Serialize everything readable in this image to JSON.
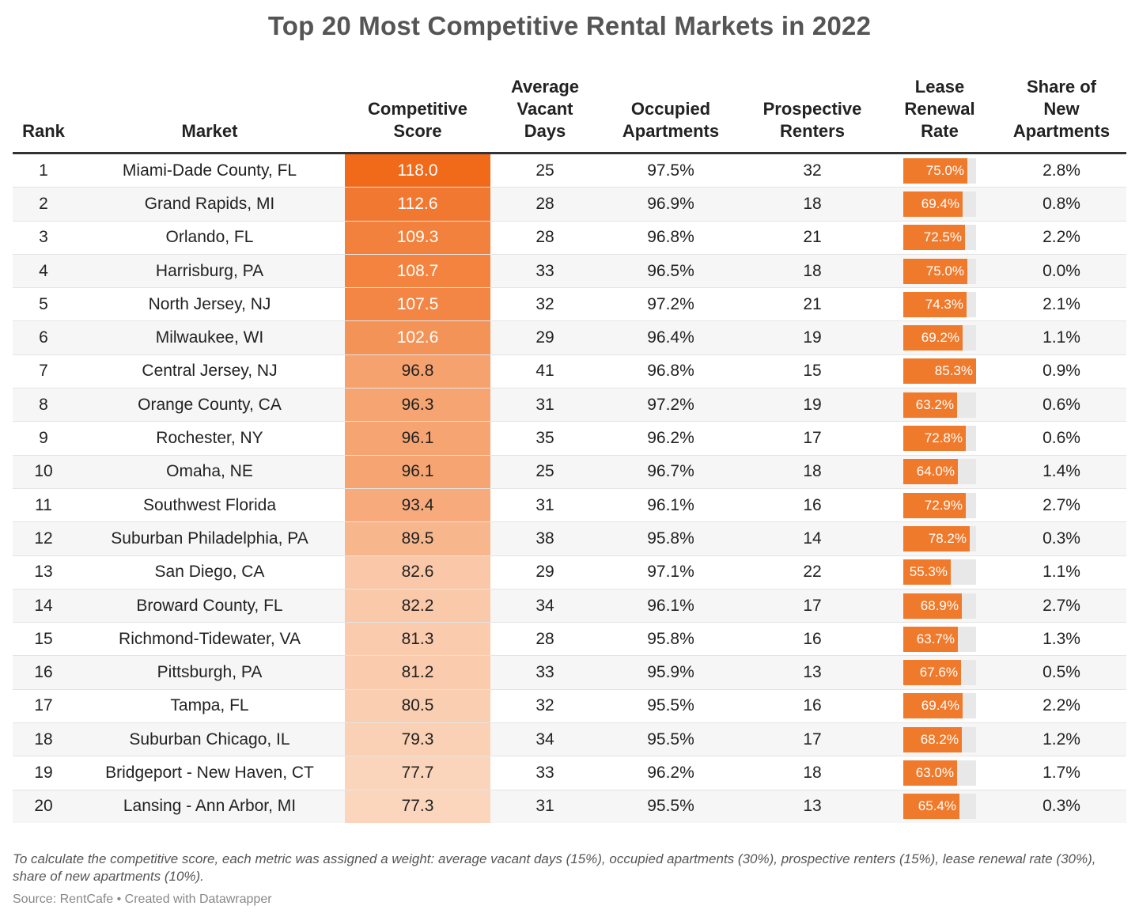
{
  "title": "Top 20 Most Competitive Rental Markets in 2022",
  "headers": {
    "rank": "Rank",
    "market": "Market",
    "score": [
      "Competitive",
      "Score"
    ],
    "vacant": [
      "Average",
      "Vacant",
      "Days"
    ],
    "occupied": [
      "Occupied",
      "Apartments"
    ],
    "renters": [
      "Prospective",
      "Renters"
    ],
    "renewal": [
      "Lease",
      "Renewal",
      "Rate"
    ],
    "new_share": [
      "Share of",
      "New",
      "Apartments"
    ]
  },
  "colors": {
    "accent": "#f07a2c",
    "score_high": "#f06a1a",
    "score_low": "#fbd6bd",
    "bar_track": "#e8e8e8"
  },
  "chart_data": {
    "type": "table",
    "title": "Top 20 Most Competitive Rental Markets in 2022",
    "columns": [
      "Rank",
      "Market",
      "Competitive Score",
      "Average Vacant Days",
      "Occupied Apartments",
      "Prospective Renters",
      "Lease Renewal Rate",
      "Share of New Apartments"
    ],
    "rows": [
      {
        "rank": "1",
        "market": "Miami-Dade County, FL",
        "score": "118.0",
        "vacant": "25",
        "occupied": "97.5%",
        "renters": "32",
        "renewal": "75.0%",
        "new_share": "2.8%"
      },
      {
        "rank": "2",
        "market": "Grand Rapids, MI",
        "score": "112.6",
        "vacant": "28",
        "occupied": "96.9%",
        "renters": "18",
        "renewal": "69.4%",
        "new_share": "0.8%"
      },
      {
        "rank": "3",
        "market": "Orlando, FL",
        "score": "109.3",
        "vacant": "28",
        "occupied": "96.8%",
        "renters": "21",
        "renewal": "72.5%",
        "new_share": "2.2%"
      },
      {
        "rank": "4",
        "market": "Harrisburg, PA",
        "score": "108.7",
        "vacant": "33",
        "occupied": "96.5%",
        "renters": "18",
        "renewal": "75.0%",
        "new_share": "0.0%"
      },
      {
        "rank": "5",
        "market": "North Jersey, NJ",
        "score": "107.5",
        "vacant": "32",
        "occupied": "97.2%",
        "renters": "21",
        "renewal": "74.3%",
        "new_share": "2.1%"
      },
      {
        "rank": "6",
        "market": "Milwaukee, WI",
        "score": "102.6",
        "vacant": "29",
        "occupied": "96.4%",
        "renters": "19",
        "renewal": "69.2%",
        "new_share": "1.1%"
      },
      {
        "rank": "7",
        "market": "Central Jersey, NJ",
        "score": "96.8",
        "vacant": "41",
        "occupied": "96.8%",
        "renters": "15",
        "renewal": "85.3%",
        "new_share": "0.9%"
      },
      {
        "rank": "8",
        "market": "Orange County, CA",
        "score": "96.3",
        "vacant": "31",
        "occupied": "97.2%",
        "renters": "19",
        "renewal": "63.2%",
        "new_share": "0.6%"
      },
      {
        "rank": "9",
        "market": "Rochester, NY",
        "score": "96.1",
        "vacant": "35",
        "occupied": "96.2%",
        "renters": "17",
        "renewal": "72.8%",
        "new_share": "0.6%"
      },
      {
        "rank": "10",
        "market": "Omaha, NE",
        "score": "96.1",
        "vacant": "25",
        "occupied": "96.7%",
        "renters": "18",
        "renewal": "64.0%",
        "new_share": "1.4%"
      },
      {
        "rank": "11",
        "market": "Southwest Florida",
        "score": "93.4",
        "vacant": "31",
        "occupied": "96.1%",
        "renters": "16",
        "renewal": "72.9%",
        "new_share": "2.7%"
      },
      {
        "rank": "12",
        "market": "Suburban Philadelphia, PA",
        "score": "89.5",
        "vacant": "38",
        "occupied": "95.8%",
        "renters": "14",
        "renewal": "78.2%",
        "new_share": "0.3%"
      },
      {
        "rank": "13",
        "market": "San Diego, CA",
        "score": "82.6",
        "vacant": "29",
        "occupied": "97.1%",
        "renters": "22",
        "renewal": "55.3%",
        "new_share": "1.1%"
      },
      {
        "rank": "14",
        "market": "Broward County, FL",
        "score": "82.2",
        "vacant": "34",
        "occupied": "96.1%",
        "renters": "17",
        "renewal": "68.9%",
        "new_share": "2.7%"
      },
      {
        "rank": "15",
        "market": "Richmond-Tidewater, VA",
        "score": "81.3",
        "vacant": "28",
        "occupied": "95.8%",
        "renters": "16",
        "renewal": "63.7%",
        "new_share": "1.3%"
      },
      {
        "rank": "16",
        "market": "Pittsburgh, PA",
        "score": "81.2",
        "vacant": "33",
        "occupied": "95.9%",
        "renters": "13",
        "renewal": "67.6%",
        "new_share": "0.5%"
      },
      {
        "rank": "17",
        "market": "Tampa, FL",
        "score": "80.5",
        "vacant": "32",
        "occupied": "95.5%",
        "renters": "16",
        "renewal": "69.4%",
        "new_share": "2.2%"
      },
      {
        "rank": "18",
        "market": "Suburban Chicago, IL",
        "score": "79.3",
        "vacant": "34",
        "occupied": "95.5%",
        "renters": "17",
        "renewal": "68.2%",
        "new_share": "1.2%"
      },
      {
        "rank": "19",
        "market": "Bridgeport - New Haven, CT",
        "score": "77.7",
        "vacant": "33",
        "occupied": "96.2%",
        "renters": "18",
        "renewal": "63.0%",
        "new_share": "1.7%"
      },
      {
        "rank": "20",
        "market": "Lansing - Ann Arbor, MI",
        "score": "77.3",
        "vacant": "31",
        "occupied": "95.5%",
        "renters": "13",
        "renewal": "65.4%",
        "new_share": "0.3%"
      }
    ]
  },
  "note": "To calculate the competitive score, each metric was assigned a weight: average vacant days (15%), occupied apartments (30%), prospective renters (15%), lease renewal rate (30%), share of new apartments (10%).",
  "source": "Source: RentCafe • Created with Datawrapper"
}
